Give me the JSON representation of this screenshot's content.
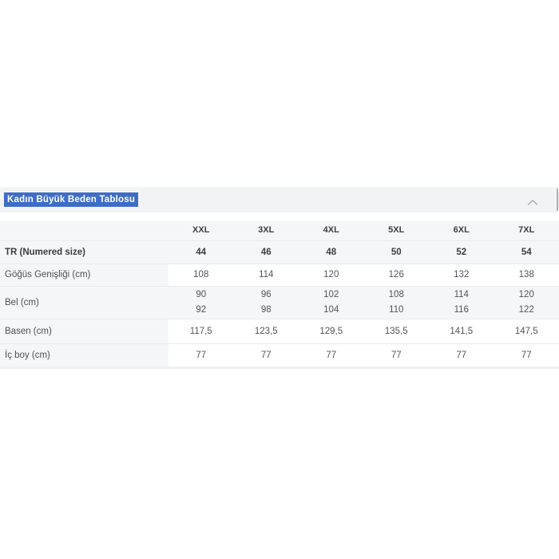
{
  "accordion": {
    "title": "Kadın Büyük Beden Tablosu",
    "collapse_icon": "chevron-up-icon",
    "title_selection_color": "#3e6dc7",
    "title_text_color": "#ffffff",
    "header_background": "#f2f3f4"
  },
  "size_table": {
    "columns": [
      "XXL",
      "3XL",
      "4XL",
      "5XL",
      "6XL",
      "7XL"
    ],
    "rows": [
      {
        "label": "TR (Numered size)",
        "values": [
          "44",
          "46",
          "48",
          "50",
          "52",
          "54"
        ]
      },
      {
        "label": "Göğüs Genişliği (cm)",
        "values": [
          "108",
          "114",
          "120",
          "126",
          "132",
          "138"
        ]
      },
      {
        "label": "Bel (cm)",
        "values": [
          "90\n92",
          "96\n98",
          "102\n104",
          "108\n110",
          "114\n116",
          "120\n122"
        ]
      },
      {
        "label": "Basen (cm)",
        "values": [
          "117,5",
          "123,5",
          "129,5",
          "135,5",
          "141,5",
          "147,5"
        ]
      },
      {
        "label": "İç boy (cm)",
        "values": [
          "77",
          "77",
          "77",
          "77",
          "77",
          "77"
        ]
      }
    ]
  }
}
